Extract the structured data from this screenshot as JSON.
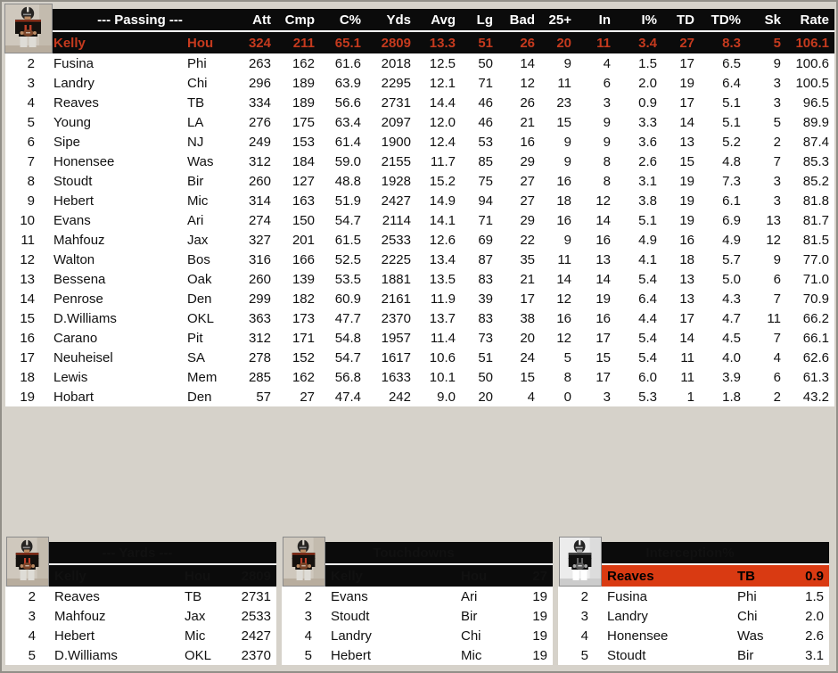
{
  "window": {
    "background": "#d6d2ca"
  },
  "colors": {
    "bar_black": "#0b0b0b",
    "leader_red_text": "#c53a1e",
    "leader_red_bg": "#d93a12",
    "row_white": "#ffffff",
    "header_text": "#ffffff"
  },
  "passing": {
    "title": "--- Passing ---",
    "columns": [
      "Att",
      "Cmp",
      "C%",
      "Yds",
      "Avg",
      "Lg",
      "Bad",
      "25+",
      "In",
      "I%",
      "TD",
      "TD%",
      "Sk",
      "Rate"
    ],
    "leader": {
      "name": "Kelly",
      "team": "Hou",
      "values": [
        "324",
        "211",
        "65.1",
        "2809",
        "13.3",
        "51",
        "26",
        "20",
        "11",
        "3.4",
        "27",
        "8.3",
        "5",
        "106.1"
      ]
    },
    "rows": [
      {
        "rank": "2",
        "name": "Fusina",
        "team": "Phi",
        "values": [
          "263",
          "162",
          "61.6",
          "2018",
          "12.5",
          "50",
          "14",
          "9",
          "4",
          "1.5",
          "17",
          "6.5",
          "9",
          "100.6"
        ]
      },
      {
        "rank": "3",
        "name": "Landry",
        "team": "Chi",
        "values": [
          "296",
          "189",
          "63.9",
          "2295",
          "12.1",
          "71",
          "12",
          "11",
          "6",
          "2.0",
          "19",
          "6.4",
          "3",
          "100.5"
        ]
      },
      {
        "rank": "4",
        "name": "Reaves",
        "team": "TB",
        "values": [
          "334",
          "189",
          "56.6",
          "2731",
          "14.4",
          "46",
          "26",
          "23",
          "3",
          "0.9",
          "17",
          "5.1",
          "3",
          "96.5"
        ]
      },
      {
        "rank": "5",
        "name": "Young",
        "team": "LA",
        "values": [
          "276",
          "175",
          "63.4",
          "2097",
          "12.0",
          "46",
          "21",
          "15",
          "9",
          "3.3",
          "14",
          "5.1",
          "5",
          "89.9"
        ]
      },
      {
        "rank": "6",
        "name": "Sipe",
        "team": "NJ",
        "values": [
          "249",
          "153",
          "61.4",
          "1900",
          "12.4",
          "53",
          "16",
          "9",
          "9",
          "3.6",
          "13",
          "5.2",
          "2",
          "87.4"
        ]
      },
      {
        "rank": "7",
        "name": "Honensee",
        "team": "Was",
        "values": [
          "312",
          "184",
          "59.0",
          "2155",
          "11.7",
          "85",
          "29",
          "9",
          "8",
          "2.6",
          "15",
          "4.8",
          "7",
          "85.3"
        ]
      },
      {
        "rank": "8",
        "name": "Stoudt",
        "team": "Bir",
        "values": [
          "260",
          "127",
          "48.8",
          "1928",
          "15.2",
          "75",
          "27",
          "16",
          "8",
          "3.1",
          "19",
          "7.3",
          "3",
          "85.2"
        ]
      },
      {
        "rank": "9",
        "name": "Hebert",
        "team": "Mic",
        "values": [
          "314",
          "163",
          "51.9",
          "2427",
          "14.9",
          "94",
          "27",
          "18",
          "12",
          "3.8",
          "19",
          "6.1",
          "3",
          "81.8"
        ]
      },
      {
        "rank": "10",
        "name": "Evans",
        "team": "Ari",
        "values": [
          "274",
          "150",
          "54.7",
          "2114",
          "14.1",
          "71",
          "29",
          "16",
          "14",
          "5.1",
          "19",
          "6.9",
          "13",
          "81.7"
        ]
      },
      {
        "rank": "11",
        "name": "Mahfouz",
        "team": "Jax",
        "values": [
          "327",
          "201",
          "61.5",
          "2533",
          "12.6",
          "69",
          "22",
          "9",
          "16",
          "4.9",
          "16",
          "4.9",
          "12",
          "81.5"
        ]
      },
      {
        "rank": "12",
        "name": "Walton",
        "team": "Bos",
        "values": [
          "316",
          "166",
          "52.5",
          "2225",
          "13.4",
          "87",
          "35",
          "11",
          "13",
          "4.1",
          "18",
          "5.7",
          "9",
          "77.0"
        ]
      },
      {
        "rank": "13",
        "name": "Bessena",
        "team": "Oak",
        "values": [
          "260",
          "139",
          "53.5",
          "1881",
          "13.5",
          "83",
          "21",
          "14",
          "14",
          "5.4",
          "13",
          "5.0",
          "6",
          "71.0"
        ]
      },
      {
        "rank": "14",
        "name": "Penrose",
        "team": "Den",
        "values": [
          "299",
          "182",
          "60.9",
          "2161",
          "11.9",
          "39",
          "17",
          "12",
          "19",
          "6.4",
          "13",
          "4.3",
          "7",
          "70.9"
        ]
      },
      {
        "rank": "15",
        "name": "D.Williams",
        "team": "OKL",
        "values": [
          "363",
          "173",
          "47.7",
          "2370",
          "13.7",
          "83",
          "38",
          "16",
          "16",
          "4.4",
          "17",
          "4.7",
          "11",
          "66.2"
        ]
      },
      {
        "rank": "16",
        "name": "Carano",
        "team": "Pit",
        "values": [
          "312",
          "171",
          "54.8",
          "1957",
          "11.4",
          "73",
          "20",
          "12",
          "17",
          "5.4",
          "14",
          "4.5",
          "7",
          "66.1"
        ]
      },
      {
        "rank": "17",
        "name": "Neuheisel",
        "team": "SA",
        "values": [
          "278",
          "152",
          "54.7",
          "1617",
          "10.6",
          "51",
          "24",
          "5",
          "15",
          "5.4",
          "11",
          "4.0",
          "4",
          "62.6"
        ]
      },
      {
        "rank": "18",
        "name": "Lewis",
        "team": "Mem",
        "values": [
          "285",
          "162",
          "56.8",
          "1633",
          "10.1",
          "50",
          "15",
          "8",
          "17",
          "6.0",
          "11",
          "3.9",
          "6",
          "61.3"
        ]
      },
      {
        "rank": "19",
        "name": "Hobart",
        "team": "Den",
        "values": [
          "57",
          "27",
          "47.4",
          "242",
          "9.0",
          "20",
          "4",
          "0",
          "3",
          "5.3",
          "1",
          "1.8",
          "2",
          "43.2"
        ]
      }
    ]
  },
  "mini_tables": [
    {
      "title": "--- Yards ---",
      "photo": "color",
      "leader_variant": "red-text",
      "leader": {
        "name": "Kelly",
        "team": "Hou",
        "value": "2809"
      },
      "rows": [
        {
          "rank": "2",
          "name": "Reaves",
          "team": "TB",
          "value": "2731"
        },
        {
          "rank": "3",
          "name": "Mahfouz",
          "team": "Jax",
          "value": "2533"
        },
        {
          "rank": "4",
          "name": "Hebert",
          "team": "Mic",
          "value": "2427"
        },
        {
          "rank": "5",
          "name": "D.Williams",
          "team": "OKL",
          "value": "2370"
        }
      ]
    },
    {
      "title": "Touchdowns",
      "photo": "color",
      "leader_variant": "red-text",
      "leader": {
        "name": "Kelly",
        "team": "Hou",
        "value": "27"
      },
      "rows": [
        {
          "rank": "2",
          "name": "Evans",
          "team": "Ari",
          "value": "19"
        },
        {
          "rank": "3",
          "name": "Stoudt",
          "team": "Bir",
          "value": "19"
        },
        {
          "rank": "4",
          "name": "Landry",
          "team": "Chi",
          "value": "19"
        },
        {
          "rank": "5",
          "name": "Hebert",
          "team": "Mic",
          "value": "19"
        }
      ]
    },
    {
      "title": "Interception%",
      "photo": "bw",
      "leader_variant": "red-bg",
      "leader": {
        "name": "Reaves",
        "team": "TB",
        "value": "0.9"
      },
      "rows": [
        {
          "rank": "2",
          "name": "Fusina",
          "team": "Phi",
          "value": "1.5"
        },
        {
          "rank": "3",
          "name": "Landry",
          "team": "Chi",
          "value": "2.0"
        },
        {
          "rank": "4",
          "name": "Honensee",
          "team": "Was",
          "value": "2.6"
        },
        {
          "rank": "5",
          "name": "Stoudt",
          "team": "Bir",
          "value": "3.1"
        }
      ]
    }
  ]
}
